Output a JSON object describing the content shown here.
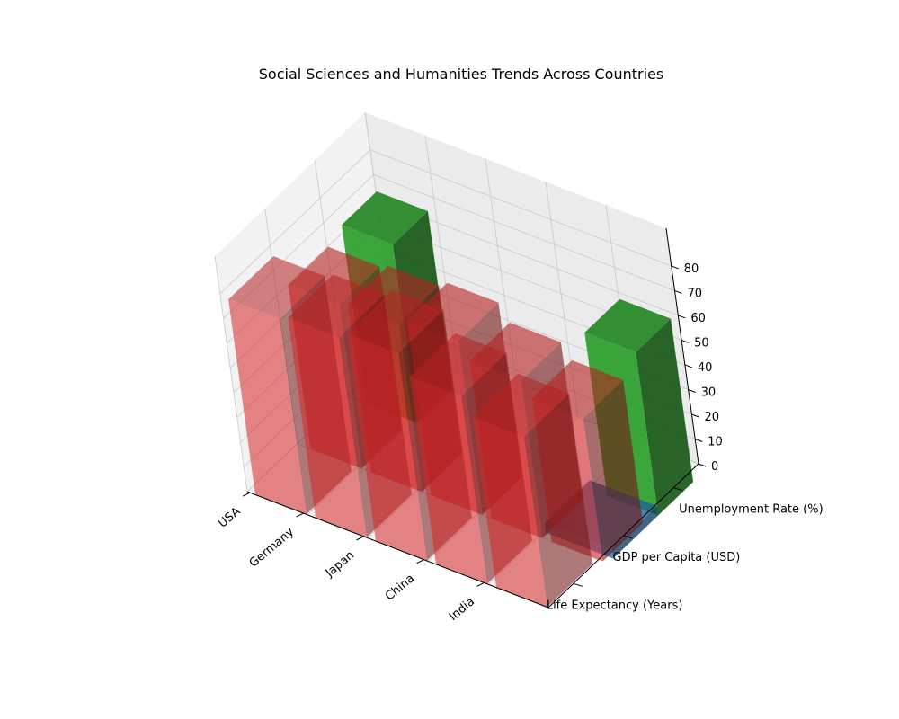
{
  "chart_data": {
    "type": "bar3d",
    "title": "Social Sciences and Humanities Trends Across Countries",
    "categories": [
      "USA",
      "Germany",
      "Japan",
      "China",
      "India"
    ],
    "series": [
      {
        "name": "Life Expectancy (Years)",
        "values": [
          79,
          81,
          84,
          76,
          69
        ]
      },
      {
        "name": "GDP per Capita (USD)",
        "values": [
          0,
          0,
          0,
          0,
          0
        ]
      },
      {
        "name": "Unemployment Rate (%)",
        "values": [
          0,
          0,
          0,
          0,
          0
        ]
      }
    ],
    "green_bars": [
      {
        "label": "USA",
        "value": 72
      },
      {
        "label": "India",
        "value": 66
      }
    ],
    "zlim": [
      0,
      80
    ],
    "zticks": [
      0,
      10,
      20,
      30,
      40,
      50,
      60,
      70,
      80
    ],
    "colors": {
      "red": "#d62728",
      "green": "#2ca02c",
      "blue": "#1f77b4",
      "pane": "#f2f2f2",
      "pane_right": "#ebebeb",
      "grid": "#c8c8c8"
    },
    "grid": true
  }
}
